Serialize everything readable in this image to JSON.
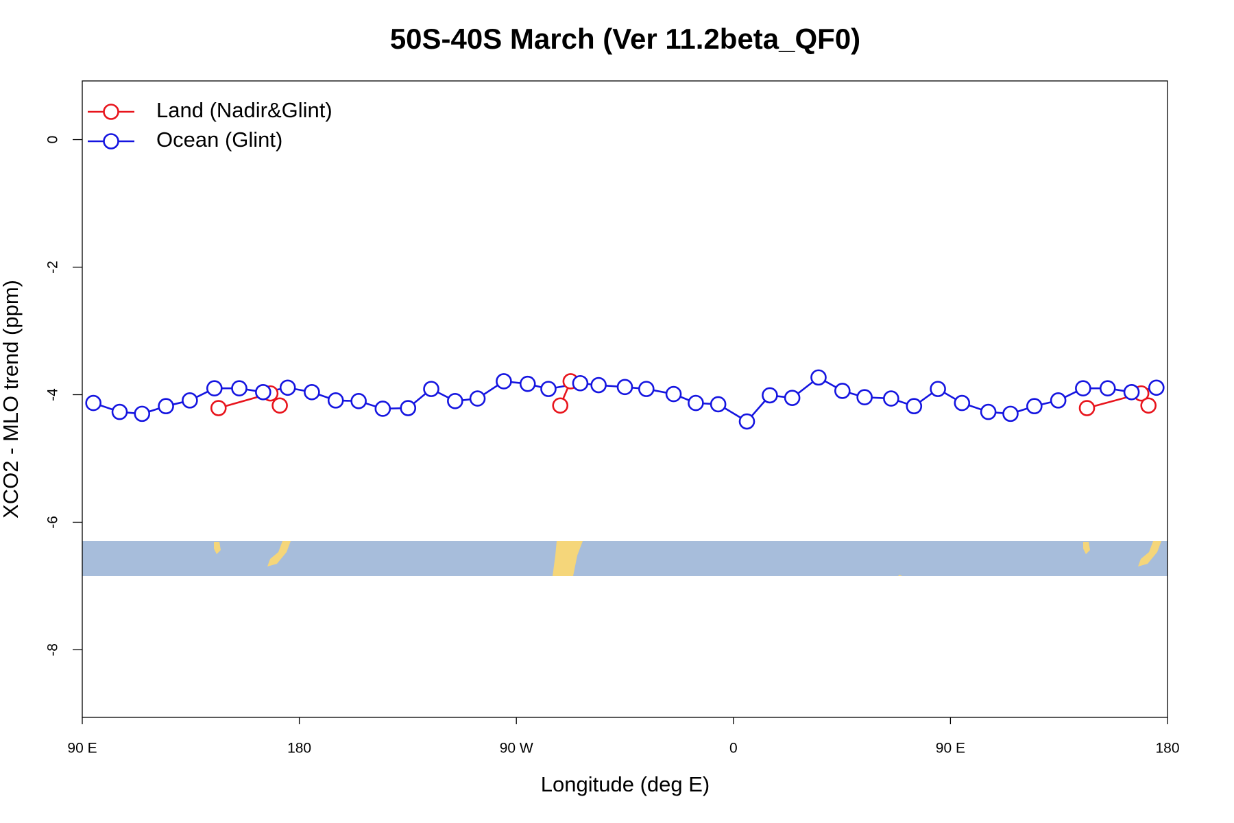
{
  "chart_data": {
    "type": "line",
    "title": "50S-40S March (Ver 11.2beta_QF0)",
    "x_label": "Longitude (deg E)",
    "y_label": "XCO2 - MLO trend (ppm)",
    "xlim": [
      90,
      540
    ],
    "xticks": [
      {
        "value": 90,
        "label": "90 E"
      },
      {
        "value": 180,
        "label": "180"
      },
      {
        "value": 270,
        "label": "90 W"
      },
      {
        "value": 360,
        "label": "0"
      },
      {
        "value": 450,
        "label": "90 E"
      },
      {
        "value": 540,
        "label": "180"
      }
    ],
    "ylim": [
      -9.06,
      0.92
    ],
    "yticks": [
      0,
      -2,
      -4,
      -6,
      -8
    ],
    "legend": "top-left",
    "series": [
      {
        "name": "Land (Nadir&Glint)",
        "color": "#e8141c",
        "x": [
          146.5,
          168.0,
          171.9,
          null,
          288.2,
          292.5,
          null,
          506.6,
          529.1,
          532.1
        ],
        "values": [
          -4.21,
          -3.98,
          -4.17,
          null,
          -4.17,
          -3.79,
          null,
          -4.21,
          -3.98,
          -4.17
        ]
      },
      {
        "name": "Ocean (Glint)",
        "color": "#1414e0",
        "x": [
          94.6,
          105.5,
          114.8,
          124.7,
          134.6,
          144.8,
          155.1,
          165.0,
          175.2,
          185.2,
          195.1,
          204.6,
          214.6,
          225.1,
          234.7,
          244.6,
          253.9,
          264.8,
          274.7,
          283.3,
          296.5,
          304.1,
          315.0,
          323.9,
          335.2,
          344.4,
          353.7,
          365.6,
          375.1,
          384.4,
          395.3,
          405.2,
          414.4,
          425.4,
          434.9,
          444.8,
          454.8,
          465.7,
          474.9,
          484.8,
          494.7,
          505.0,
          515.2,
          525.1,
          535.4
        ],
        "values": [
          -4.13,
          -4.27,
          -4.3,
          -4.18,
          -4.09,
          -3.9,
          -3.9,
          -3.96,
          -3.89,
          -3.96,
          -4.09,
          -4.1,
          -4.22,
          -4.21,
          -3.91,
          -4.1,
          -4.06,
          -3.79,
          -3.83,
          -3.91,
          -3.82,
          -3.85,
          -3.88,
          -3.91,
          -3.99,
          -4.13,
          -4.15,
          -4.42,
          -4.01,
          -4.05,
          -3.73,
          -3.94,
          -4.04,
          -4.06,
          -4.18,
          -3.91,
          -4.13,
          -4.27,
          -4.3,
          -4.18,
          -4.09,
          -3.9,
          -3.9,
          -3.96,
          -3.89
        ]
      }
    ]
  }
}
